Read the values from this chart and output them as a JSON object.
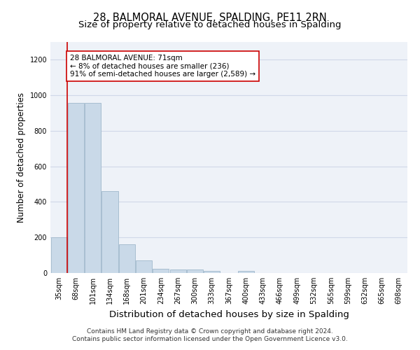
{
  "title": "28, BALMORAL AVENUE, SPALDING, PE11 2RN",
  "subtitle": "Size of property relative to detached houses in Spalding",
  "xlabel": "Distribution of detached houses by size in Spalding",
  "ylabel": "Number of detached properties",
  "footer_line1": "Contains HM Land Registry data © Crown copyright and database right 2024.",
  "footer_line2": "Contains public sector information licensed under the Open Government Licence v3.0.",
  "annotation_line1": "28 BALMORAL AVENUE: 71sqm",
  "annotation_line2": "← 8% of detached houses are smaller (236)",
  "annotation_line3": "91% of semi-detached houses are larger (2,589) →",
  "bar_color": "#c9d9e8",
  "bar_edge_color": "#a0b8cc",
  "ref_line_color": "#cc0000",
  "ref_line_x": 1,
  "categories": [
    "35sqm",
    "68sqm",
    "101sqm",
    "134sqm",
    "168sqm",
    "201sqm",
    "234sqm",
    "267sqm",
    "300sqm",
    "333sqm",
    "367sqm",
    "400sqm",
    "433sqm",
    "466sqm",
    "499sqm",
    "532sqm",
    "565sqm",
    "599sqm",
    "632sqm",
    "665sqm",
    "698sqm"
  ],
  "values": [
    200,
    958,
    958,
    462,
    162,
    72,
    25,
    20,
    18,
    12,
    0,
    12,
    0,
    0,
    0,
    0,
    0,
    0,
    0,
    0,
    0
  ],
  "ylim": [
    0,
    1300
  ],
  "yticks": [
    0,
    200,
    400,
    600,
    800,
    1000,
    1200
  ],
  "background_color": "#eef2f8",
  "grid_color": "#d0d8e8",
  "title_fontsize": 10.5,
  "subtitle_fontsize": 9.5,
  "axis_label_fontsize": 8.5,
  "tick_fontsize": 7,
  "annotation_fontsize": 7.5,
  "footer_fontsize": 6.5
}
